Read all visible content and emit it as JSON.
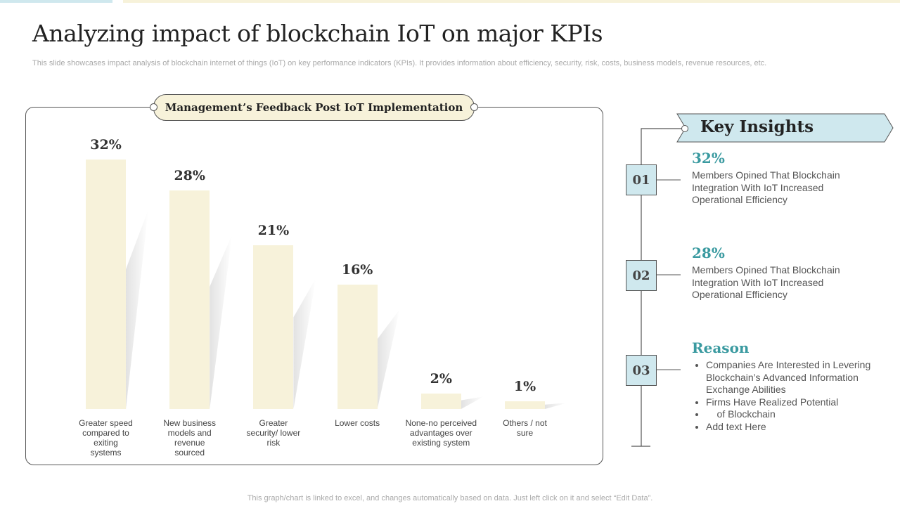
{
  "title": "Analyzing impact of blockchain IoT on major KPIs",
  "subtitle": "This slide showcases impact analysis of blockchain internet of things (IoT) on key performance indicators (KPIs). It provides information about efficiency, security, risk, costs, business models, revenue resources, etc.",
  "colors": {
    "bar": "#f7f2da",
    "accent": "#3a9aa0",
    "insight_fill": "#cfe8ee"
  },
  "chart_data": {
    "type": "bar",
    "title": "Management’s Feedback Post IoT Implementation",
    "categories": [
      "Greater speed compared to exiting systems",
      "New business models and revenue sourced",
      "Greater security/ lower risk",
      "Lower costs",
      "None-no perceived advantages over existing system",
      "Others / not sure"
    ],
    "values": [
      32,
      28,
      21,
      16,
      2,
      1
    ],
    "labels": [
      "32%",
      "28%",
      "21%",
      "16%",
      "2%",
      "1%"
    ],
    "ylim": [
      0,
      32
    ],
    "grid": false
  },
  "insights": {
    "header": "Key Insights",
    "items": [
      {
        "num": "01",
        "pct": "32%",
        "text": "Members Opined That Blockchain Integration With IoT Increased Operational Efficiency"
      },
      {
        "num": "02",
        "pct": "28%",
        "text": "Members Opined That Blockchain Integration With IoT Increased Operational Efficiency"
      }
    ],
    "reason": {
      "num": "03",
      "heading": "Reason",
      "bullets": [
        "Companies Are Interested in Levering Blockchain’s Advanced Information Exchange Abilities",
        "Firms Have Realized Potential",
        "    of Blockchain",
        "Add text Here"
      ]
    }
  },
  "footer": "This graph/chart is linked to excel, and changes automatically based on data. Just left click on it and select “Edit Data”."
}
